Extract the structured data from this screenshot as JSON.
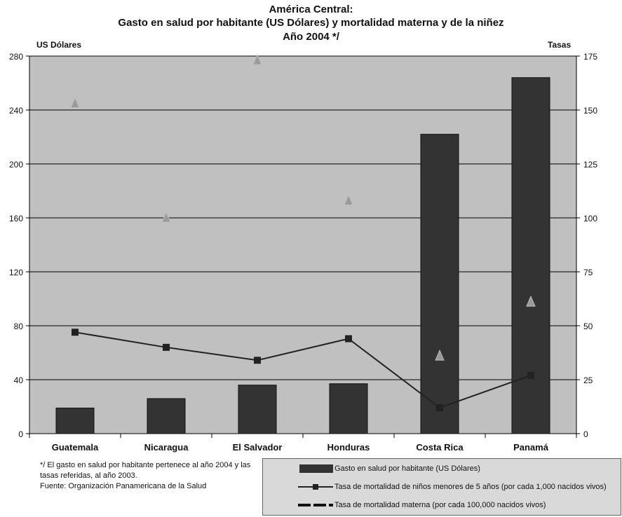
{
  "title_lines": [
    "América Central:",
    "Gasto en salud por habitante (US Dólares) y mortalidad materna y de la niñez",
    "Año 2004 */"
  ],
  "left_axis_unit": "US Dólares",
  "right_axis_unit": "Tasas",
  "notes": [
    "*/ El gasto en salud por habitante pertenece al año 2004 y las",
    "tasas referidas, al año 2003.",
    "Fuente: Organización Panamericana de la Salud"
  ],
  "legend": [
    "Gasto en salud por habitante (US Dólares)",
    "Tasa de mortalidad de niños menores de 5 años (por cada 1,000 nacidos vivos)",
    "Tasa de mortalidad materna (por cada 100,000 nacidos vivos)"
  ],
  "colors": {
    "plot_bg": "#c0c0c0",
    "bar": "#333333",
    "line": "#222222",
    "triangle": "#9a9a9a",
    "grid": "#000000"
  },
  "chart_data": {
    "type": "bar",
    "categories": [
      "Guatemala",
      "Nicaragua",
      "El Salvador",
      "Honduras",
      "Costa Rica",
      "Panamá"
    ],
    "series": [
      {
        "name": "Gasto en salud por habitante (US Dólares)",
        "type": "bar",
        "axis": "left",
        "values": [
          19,
          26,
          36,
          37,
          222,
          264
        ]
      },
      {
        "name": "Tasa de mortalidad de niños menores de 5 años (por cada 1,000 nacidos vivos)",
        "type": "line",
        "axis": "right",
        "values": [
          47,
          40,
          34,
          44,
          12,
          27
        ]
      },
      {
        "name": "Tasa de mortalidad materna (por cada 100,000 nacidos vivos)",
        "type": "scatter",
        "axis": "right",
        "values": [
          153,
          100,
          173,
          108,
          36,
          61
        ]
      }
    ],
    "y_left": {
      "range": [
        0,
        280
      ],
      "ticks": [
        0,
        40,
        80,
        120,
        160,
        200,
        240,
        280
      ]
    },
    "y_right": {
      "range": [
        0,
        175
      ],
      "ticks": [
        0,
        25,
        50,
        75,
        100,
        125,
        150,
        175
      ]
    },
    "grid": true,
    "legend_position": "bottom-right"
  }
}
